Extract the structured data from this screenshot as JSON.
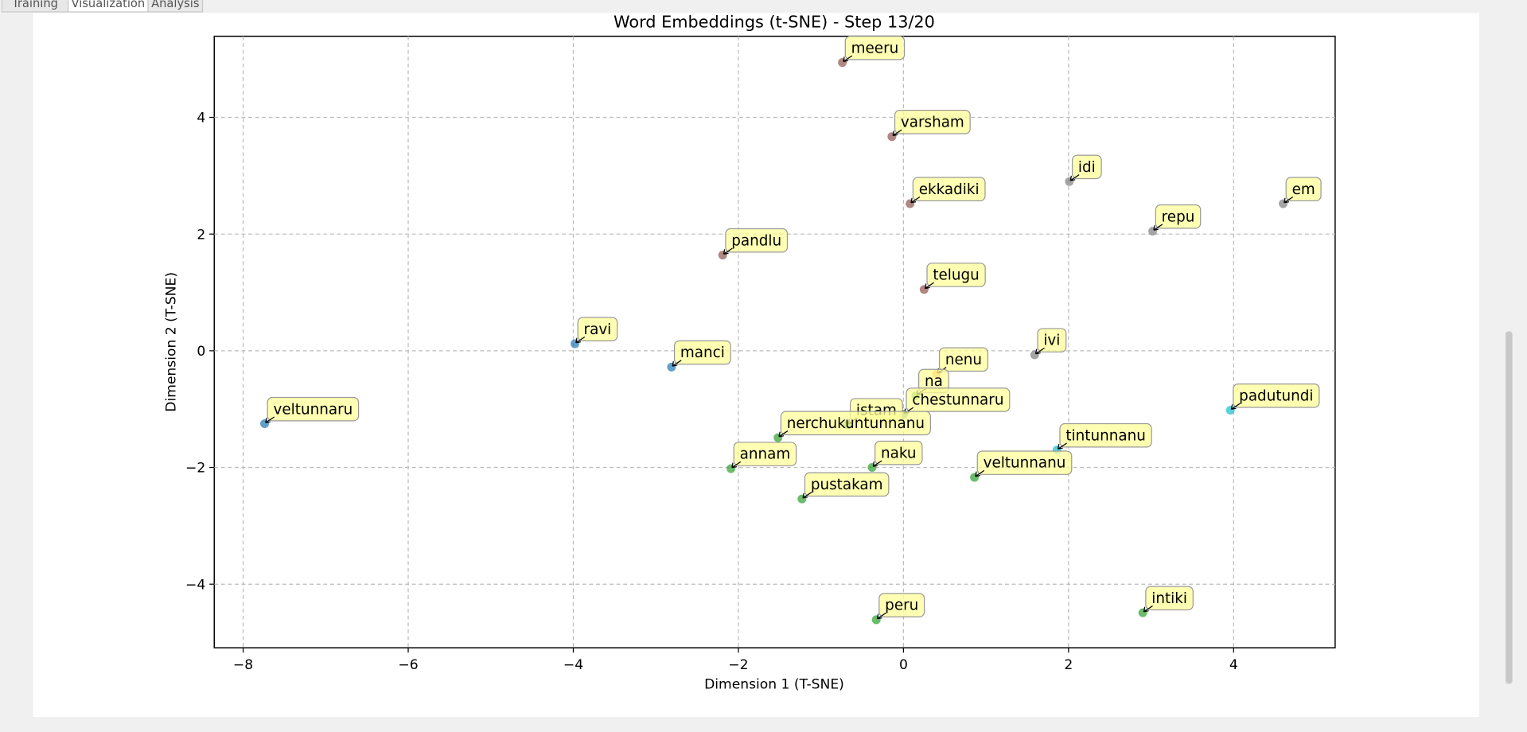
{
  "tabs": [
    "Training",
    "Visualization",
    "Analysis"
  ],
  "chart_data": {
    "type": "scatter",
    "title": "Word Embeddings (t-SNE) - Step 13/20",
    "x_label": "Dimension 1 (T-SNE)",
    "y_label": "Dimension 2 (T-SNE)",
    "xlim": [
      -8.35,
      5.23
    ],
    "ylim": [
      -5.09,
      5.39
    ],
    "xticks": [
      {
        "value": -8,
        "label": "−8"
      },
      {
        "value": -6,
        "label": "−6"
      },
      {
        "value": -4,
        "label": "−4"
      },
      {
        "value": -2,
        "label": "−2"
      },
      0,
      2,
      4
    ],
    "yticks": [
      {
        "value": -4,
        "label": "−4"
      },
      {
        "value": -2,
        "label": "−2"
      },
      0,
      2,
      4
    ],
    "grid": true,
    "points": [
      {
        "label": "meeru",
        "x": -0.74,
        "y": 4.94,
        "color": "#8c564b"
      },
      {
        "label": "varsham",
        "x": -0.14,
        "y": 3.67,
        "color": "#8c564b"
      },
      {
        "label": "idi",
        "x": 2.01,
        "y": 2.9,
        "color": "#7f7f7f"
      },
      {
        "label": "em",
        "x": 4.6,
        "y": 2.52,
        "color": "#7f7f7f"
      },
      {
        "label": "ekkadiki",
        "x": 0.08,
        "y": 2.52,
        "color": "#8c564b"
      },
      {
        "label": "repu",
        "x": 3.02,
        "y": 2.05,
        "color": "#7f7f7f"
      },
      {
        "label": "pandlu",
        "x": -2.19,
        "y": 1.64,
        "color": "#8c564b"
      },
      {
        "label": "telugu",
        "x": 0.25,
        "y": 1.05,
        "color": "#8c564b"
      },
      {
        "label": "ravi",
        "x": -3.98,
        "y": 0.12,
        "color": "#1f77b4"
      },
      {
        "label": "manci",
        "x": -2.81,
        "y": -0.28,
        "color": "#1f77b4"
      },
      {
        "label": "ivi",
        "x": 1.59,
        "y": -0.07,
        "color": "#7f7f7f"
      },
      {
        "label": "nenu",
        "x": 0.4,
        "y": -0.4,
        "color": "#ff7f0e"
      },
      {
        "label": "na",
        "x": 0.15,
        "y": -0.77,
        "color": "#2ca02c"
      },
      {
        "label": "chestunnaru",
        "x": 0.0,
        "y": -1.09,
        "color": "#2ca02c"
      },
      {
        "label": "istam",
        "x": -0.68,
        "y": -1.27,
        "color": "#2ca02c"
      },
      {
        "label": "nerchukuntunnanu",
        "x": -1.52,
        "y": -1.49,
        "color": "#2ca02c"
      },
      {
        "label": "padutundi",
        "x": 3.96,
        "y": -1.02,
        "color": "#17becf"
      },
      {
        "label": "veltunnaru",
        "x": -7.74,
        "y": -1.25,
        "color": "#1f77b4"
      },
      {
        "label": "tintunnanu",
        "x": 1.86,
        "y": -1.7,
        "color": "#17becf"
      },
      {
        "label": "annam",
        "x": -2.09,
        "y": -2.02,
        "color": "#2ca02c"
      },
      {
        "label": "naku",
        "x": -0.38,
        "y": -2.0,
        "color": "#2ca02c"
      },
      {
        "label": "veltunnanu",
        "x": 0.86,
        "y": -2.17,
        "color": "#2ca02c"
      },
      {
        "label": "pustakam",
        "x": -1.23,
        "y": -2.54,
        "color": "#2ca02c"
      },
      {
        "label": "peru",
        "x": -0.33,
        "y": -4.61,
        "color": "#2ca02c"
      },
      {
        "label": "intiki",
        "x": 2.9,
        "y": -4.49,
        "color": "#2ca02c"
      }
    ]
  }
}
